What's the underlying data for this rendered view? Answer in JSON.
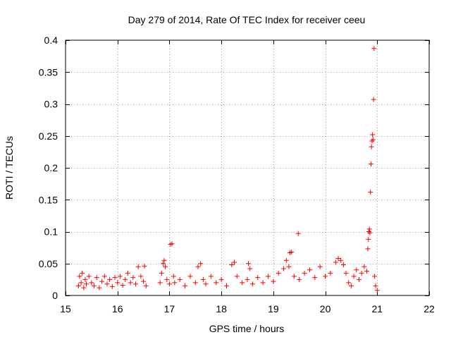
{
  "chart_data": {
    "type": "scatter",
    "title": "Day 279 of 2014, Rate Of TEC Index for receiver ceeu",
    "xlabel": "GPS time / hours",
    "ylabel": "ROTI / TECUs",
    "xlim": [
      15,
      22
    ],
    "ylim": [
      0,
      0.4
    ],
    "xticks": [
      15,
      16,
      17,
      18,
      19,
      20,
      21,
      22
    ],
    "xtick_labels": [
      "15",
      "16",
      "17",
      "18",
      "19",
      "20",
      "21",
      "22"
    ],
    "yticks": [
      0,
      0.05,
      0.1,
      0.15,
      0.2,
      0.25,
      0.3,
      0.35,
      0.4
    ],
    "ytick_labels": [
      "0",
      "0.05",
      "0.1",
      "0.15",
      "0.2",
      "0.25",
      "0.3",
      "0.35",
      "0.4"
    ],
    "grid": true,
    "marker": "+",
    "color": "#ff0000",
    "series": [
      {
        "name": "ROTI",
        "points": [
          [
            15.25,
            0.015
          ],
          [
            15.27,
            0.03
          ],
          [
            15.3,
            0.02
          ],
          [
            15.32,
            0.035
          ],
          [
            15.35,
            0.012
          ],
          [
            15.38,
            0.025
          ],
          [
            15.4,
            0.018
          ],
          [
            15.45,
            0.03
          ],
          [
            15.5,
            0.02
          ],
          [
            15.55,
            0.015
          ],
          [
            15.6,
            0.028
          ],
          [
            15.65,
            0.012
          ],
          [
            15.7,
            0.022
          ],
          [
            15.75,
            0.03
          ],
          [
            15.8,
            0.018
          ],
          [
            15.85,
            0.025
          ],
          [
            15.9,
            0.014
          ],
          [
            15.95,
            0.028
          ],
          [
            16.0,
            0.02
          ],
          [
            16.05,
            0.03
          ],
          [
            16.1,
            0.016
          ],
          [
            16.15,
            0.025
          ],
          [
            16.2,
            0.035
          ],
          [
            16.25,
            0.02
          ],
          [
            16.3,
            0.028
          ],
          [
            16.35,
            0.018
          ],
          [
            16.4,
            0.045
          ],
          [
            16.45,
            0.03
          ],
          [
            16.5,
            0.022
          ],
          [
            16.52,
            0.046
          ],
          [
            16.55,
            0.015
          ],
          [
            16.82,
            0.02
          ],
          [
            16.85,
            0.035
          ],
          [
            16.88,
            0.05
          ],
          [
            16.9,
            0.055
          ],
          [
            16.92,
            0.045
          ],
          [
            16.95,
            0.025
          ],
          [
            17.0,
            0.018
          ],
          [
            17.02,
            0.08
          ],
          [
            17.05,
            0.081
          ],
          [
            17.08,
            0.03
          ],
          [
            17.1,
            0.02
          ],
          [
            17.2,
            0.025
          ],
          [
            17.3,
            0.015
          ],
          [
            17.4,
            0.03
          ],
          [
            17.5,
            0.02
          ],
          [
            17.55,
            0.045
          ],
          [
            17.6,
            0.05
          ],
          [
            17.65,
            0.025
          ],
          [
            17.7,
            0.018
          ],
          [
            17.8,
            0.03
          ],
          [
            17.9,
            0.02
          ],
          [
            18.0,
            0.025
          ],
          [
            18.1,
            0.015
          ],
          [
            18.2,
            0.048
          ],
          [
            18.25,
            0.052
          ],
          [
            18.3,
            0.03
          ],
          [
            18.4,
            0.02
          ],
          [
            18.5,
            0.025
          ],
          [
            18.52,
            0.05
          ],
          [
            18.55,
            0.042
          ],
          [
            18.6,
            0.018
          ],
          [
            18.7,
            0.028
          ],
          [
            18.8,
            0.02
          ],
          [
            18.9,
            0.03
          ],
          [
            19.0,
            0.022
          ],
          [
            19.1,
            0.035
          ],
          [
            19.2,
            0.042
          ],
          [
            19.25,
            0.055
          ],
          [
            19.3,
            0.045
          ],
          [
            19.32,
            0.067
          ],
          [
            19.35,
            0.068
          ],
          [
            19.4,
            0.03
          ],
          [
            19.48,
            0.097
          ],
          [
            19.5,
            0.025
          ],
          [
            19.6,
            0.035
          ],
          [
            19.7,
            0.04
          ],
          [
            19.8,
            0.028
          ],
          [
            19.9,
            0.045
          ],
          [
            20.0,
            0.03
          ],
          [
            20.1,
            0.035
          ],
          [
            20.2,
            0.052
          ],
          [
            20.25,
            0.058
          ],
          [
            20.3,
            0.055
          ],
          [
            20.35,
            0.048
          ],
          [
            20.4,
            0.035
          ],
          [
            20.45,
            0.02
          ],
          [
            20.5,
            0.015
          ],
          [
            20.55,
            0.03
          ],
          [
            20.6,
            0.04
          ],
          [
            20.65,
            0.025
          ],
          [
            20.7,
            0.035
          ],
          [
            20.75,
            0.045
          ],
          [
            20.8,
            0.038
          ],
          [
            20.82,
            0.073
          ],
          [
            20.83,
            0.088
          ],
          [
            20.84,
            0.1
          ],
          [
            20.85,
            0.104
          ],
          [
            20.86,
            0.098
          ],
          [
            20.87,
            0.162
          ],
          [
            20.88,
            0.206
          ],
          [
            20.89,
            0.233
          ],
          [
            20.9,
            0.242
          ],
          [
            20.91,
            0.252
          ],
          [
            20.92,
            0.244
          ],
          [
            20.93,
            0.307
          ],
          [
            20.94,
            0.387
          ],
          [
            20.95,
            0.03
          ],
          [
            20.97,
            0.015
          ],
          [
            21.0,
            0.008
          ]
        ]
      }
    ]
  }
}
